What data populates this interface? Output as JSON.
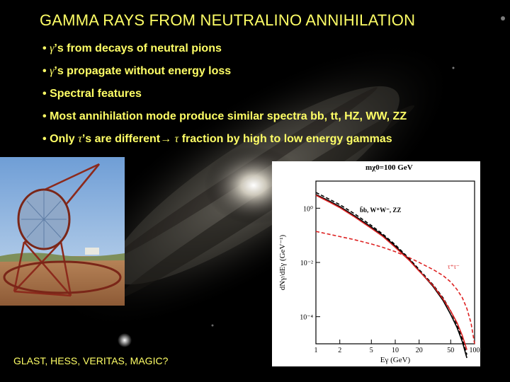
{
  "title": "GAMMA RAYS FROM NEUTRALINO ANNIHILATION",
  "bullets": [
    {
      "bullet": "•",
      "sym": "γ",
      "text": "’s from decays of neutral pions"
    },
    {
      "bullet": "•",
      "sym": "γ",
      "text": "’s propagate without energy loss"
    },
    {
      "bullet": "•",
      "text": "Spectral features"
    },
    {
      "bullet": "•",
      "text": "Most annihilation mode produce similar spectra bb, tt, HZ, WW, ZZ"
    },
    {
      "bullet": "•",
      "pre": "Only",
      "sym": "τ",
      "mid": "’s are different",
      "arrow": "→",
      "sym2": "τ",
      "post": "fraction by high to low energy gammas"
    }
  ],
  "footer": "GLAST, HESS, VERITAS, MAGIC?",
  "chart_data": {
    "type": "line",
    "title": "mχ0=100 GeV",
    "xlabel": "Eγ (GeV)",
    "ylabel": "dNγ/dEγ (GeV⁻¹)",
    "x_scale": "log",
    "y_scale": "log",
    "xlim": [
      1,
      100
    ],
    "ylim": [
      1e-05,
      10
    ],
    "xticks": [
      1,
      2,
      5,
      10,
      20,
      50,
      100
    ],
    "xtick_labels": [
      "1",
      "2",
      "5",
      "10",
      "20",
      "50",
      "100"
    ],
    "yticks": [
      1,
      0.01,
      0.0001
    ],
    "ytick_labels": [
      "10⁰",
      "10⁻²",
      "10⁻⁴"
    ],
    "annotations": [
      "b̄b, W⁺W⁻, ZZ",
      "τ⁺τ⁻"
    ],
    "series": [
      {
        "label": "bb-black-solid",
        "color": "#000000",
        "dash": "solid",
        "x": [
          1,
          1.5,
          2,
          3,
          5,
          7,
          10,
          15,
          20,
          30,
          40,
          50,
          60,
          70,
          80
        ],
        "y": [
          3.2,
          1.8,
          1.15,
          0.55,
          0.2,
          0.1,
          0.04,
          0.013,
          0.005,
          0.0013,
          0.0004,
          0.00012,
          4e-05,
          1.2e-05,
          3e-06
        ]
      },
      {
        "label": "ww-black-dashed",
        "color": "#000000",
        "dash": "dashed",
        "x": [
          1,
          1.5,
          2,
          3,
          5,
          7,
          10,
          15,
          20,
          30,
          40,
          50,
          60,
          70,
          80
        ],
        "y": [
          3.8,
          2.1,
          1.35,
          0.65,
          0.23,
          0.11,
          0.045,
          0.014,
          0.0055,
          0.0015,
          0.0005,
          0.00016,
          5e-05,
          1.5e-05,
          4e-06
        ]
      },
      {
        "label": "red-solid",
        "color": "#dd2222",
        "dash": "solid",
        "x": [
          1,
          1.5,
          2,
          3,
          5,
          7,
          10,
          15,
          20,
          30,
          40,
          50,
          60,
          70,
          80
        ],
        "y": [
          3,
          1.65,
          1.05,
          0.5,
          0.18,
          0.09,
          0.036,
          0.012,
          0.0048,
          0.0014,
          0.00045,
          0.00016,
          6e-05,
          2e-05,
          6e-06
        ]
      },
      {
        "label": "tau-red-dashed",
        "color": "#dd2222",
        "dash": "dashed",
        "x": [
          1,
          2,
          3,
          5,
          7,
          10,
          15,
          20,
          30,
          40,
          50,
          60,
          70,
          80,
          90,
          100
        ],
        "y": [
          0.14,
          0.09,
          0.07,
          0.048,
          0.036,
          0.025,
          0.015,
          0.01,
          0.0055,
          0.0033,
          0.0019,
          0.001,
          0.0005,
          0.0002,
          6e-05,
          1e-05
        ]
      }
    ]
  }
}
